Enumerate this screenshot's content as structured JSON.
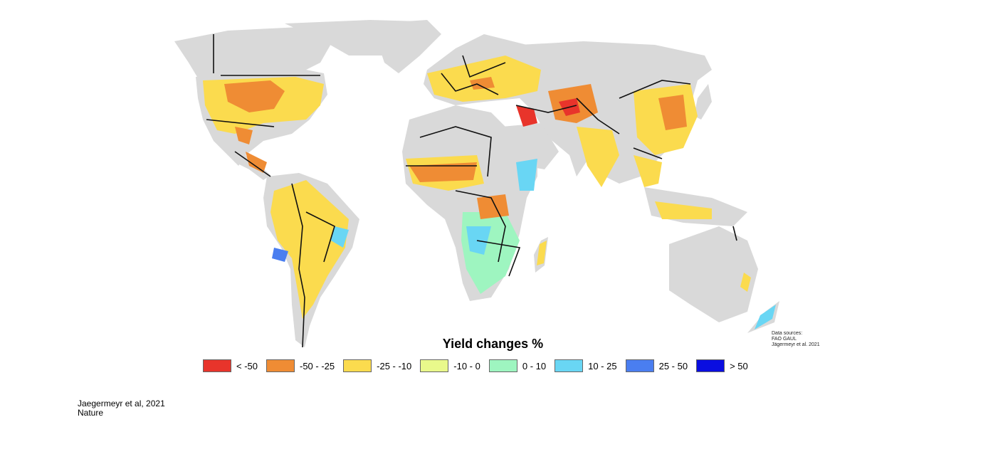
{
  "legend": {
    "title": "Yield changes %",
    "items": [
      {
        "label": "< -50",
        "color": "#e8342b"
      },
      {
        "label": "-50 - -25",
        "color": "#ef8c34"
      },
      {
        "label": "-25 - -10",
        "color": "#fbdb4e"
      },
      {
        "label": "-10 - 0",
        "color": "#e9f98b"
      },
      {
        "label": "0 - 10",
        "color": "#9ef5c0"
      },
      {
        "label": "10 - 25",
        "color": "#69d6f4"
      },
      {
        "label": "25 - 50",
        "color": "#4a7ef0"
      },
      {
        "label": "> 50",
        "color": "#0a0ee0"
      }
    ]
  },
  "sources": {
    "line1": "Data sources:",
    "line2": "FAO GAUL",
    "line3": "Jägermeyr et al. 2021"
  },
  "citation": {
    "line1": "Jaegermeyr et al, 2021",
    "line2": "Nature"
  },
  "colors": {
    "land_nodata": "#d9d9d9",
    "borders": "#111111"
  }
}
